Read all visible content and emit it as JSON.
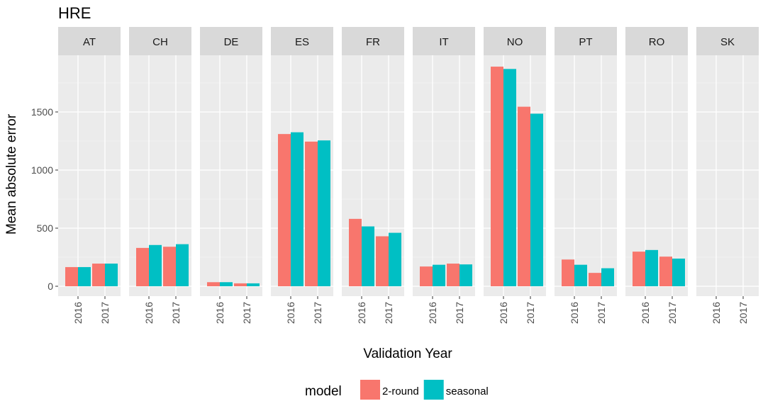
{
  "chart_data": {
    "type": "bar",
    "title": "HRE",
    "xlabel": "Validation Year",
    "ylabel": "Mean absolute error",
    "categories": [
      "2016",
      "2017"
    ],
    "y_ticks": [
      0,
      500,
      1000,
      1500
    ],
    "ylim": [
      -50,
      1950
    ],
    "grid": true,
    "legend": {
      "title": "model",
      "placement": "bottom"
    },
    "series": [
      {
        "name": "2-round",
        "color": "#F8766D"
      },
      {
        "name": "seasonal",
        "color": "#00BFC4"
      }
    ],
    "panels": [
      {
        "label": "AT",
        "values": {
          "2-round": [
            165,
            195
          ],
          "seasonal": [
            165,
            195
          ]
        }
      },
      {
        "label": "CH",
        "values": {
          "2-round": [
            330,
            340
          ],
          "seasonal": [
            355,
            362
          ]
        }
      },
      {
        "label": "DE",
        "values": {
          "2-round": [
            35,
            25
          ],
          "seasonal": [
            35,
            25
          ]
        }
      },
      {
        "label": "ES",
        "values": {
          "2-round": [
            1310,
            1245
          ],
          "seasonal": [
            1325,
            1255
          ]
        }
      },
      {
        "label": "FR",
        "values": {
          "2-round": [
            580,
            430
          ],
          "seasonal": [
            515,
            460
          ]
        }
      },
      {
        "label": "IT",
        "values": {
          "2-round": [
            170,
            195
          ],
          "seasonal": [
            185,
            188
          ]
        }
      },
      {
        "label": "NO",
        "values": {
          "2-round": [
            1890,
            1545
          ],
          "seasonal": [
            1870,
            1485
          ]
        }
      },
      {
        "label": "PT",
        "values": {
          "2-round": [
            230,
            115
          ],
          "seasonal": [
            185,
            155
          ]
        }
      },
      {
        "label": "RO",
        "values": {
          "2-round": [
            298,
            255
          ],
          "seasonal": [
            312,
            238
          ]
        }
      },
      {
        "label": "SK",
        "values": {
          "2-round": [
            0,
            0
          ],
          "seasonal": [
            0,
            0
          ]
        }
      }
    ]
  }
}
